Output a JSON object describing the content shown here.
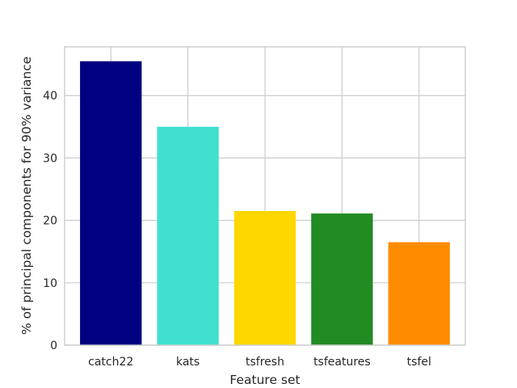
{
  "chart_data": {
    "type": "bar",
    "categories": [
      "catch22",
      "kats",
      "tsfresh",
      "tsfeatures",
      "tsfel"
    ],
    "values": [
      45.5,
      35.0,
      21.5,
      21.1,
      16.5
    ],
    "colors": [
      "#000080",
      "#40e0d0",
      "#ffd700",
      "#228b22",
      "#ff8c00"
    ],
    "xlabel": "Feature set",
    "ylabel": "% of principal components for 90% variance",
    "ylim": [
      0,
      47.8
    ],
    "yticks": [
      0,
      10,
      20,
      30,
      40
    ],
    "grid": true
  }
}
